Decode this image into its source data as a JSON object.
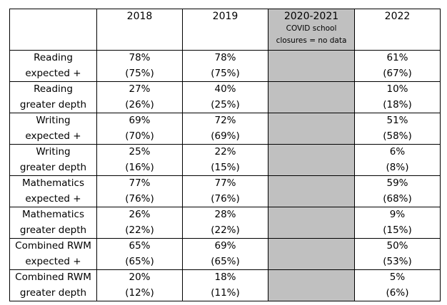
{
  "table": {
    "headers": [
      "",
      "2018",
      "2019",
      "2020-2021",
      "2022"
    ],
    "covid_note": [
      "COVID school",
      "closures = no data"
    ],
    "rows": [
      {
        "label": [
          "Reading",
          "expected +"
        ],
        "y2018": [
          "78%",
          "(75%)"
        ],
        "y2019": [
          "78%",
          "(75%)"
        ],
        "y2022": [
          "61%",
          "(67%)"
        ]
      },
      {
        "label": [
          "Reading",
          "greater depth"
        ],
        "y2018": [
          "27%",
          "(26%)"
        ],
        "y2019": [
          "40%",
          "(25%)"
        ],
        "y2022": [
          "10%",
          "(18%)"
        ]
      },
      {
        "label": [
          "Writing",
          "expected +"
        ],
        "y2018": [
          "69%",
          "(70%)"
        ],
        "y2019": [
          "72%",
          "(69%)"
        ],
        "y2022": [
          "51%",
          "(58%)"
        ]
      },
      {
        "label": [
          "Writing",
          "greater depth"
        ],
        "y2018": [
          "25%",
          "(16%)"
        ],
        "y2019": [
          "22%",
          "(15%)"
        ],
        "y2022": [
          "6%",
          "(8%)"
        ]
      },
      {
        "label": [
          "Mathematics",
          "expected +"
        ],
        "y2018": [
          "77%",
          "(76%)"
        ],
        "y2019": [
          "77%",
          "(76%)"
        ],
        "y2022": [
          "59%",
          "(68%)"
        ]
      },
      {
        "label": [
          "Mathematics",
          "greater depth"
        ],
        "y2018": [
          "26%",
          "(22%)"
        ],
        "y2019": [
          "28%",
          "(22%)"
        ],
        "y2022": [
          "9%",
          "(15%)"
        ]
      },
      {
        "label": [
          "Combined RWM",
          "expected +"
        ],
        "y2018": [
          "65%",
          "(65%)"
        ],
        "y2019": [
          "69%",
          "(65%)"
        ],
        "y2022": [
          "50%",
          "(53%)"
        ]
      },
      {
        "label": [
          "Combined RWM",
          "greater depth"
        ],
        "y2018": [
          "20%",
          "(12%)"
        ],
        "y2019": [
          "18%",
          "(11%)"
        ],
        "y2022": [
          "5%",
          "(6%)"
        ]
      }
    ],
    "colors": {
      "border": "#000000",
      "no_data_fill": "#c0c0c0",
      "background": "#ffffff"
    }
  }
}
